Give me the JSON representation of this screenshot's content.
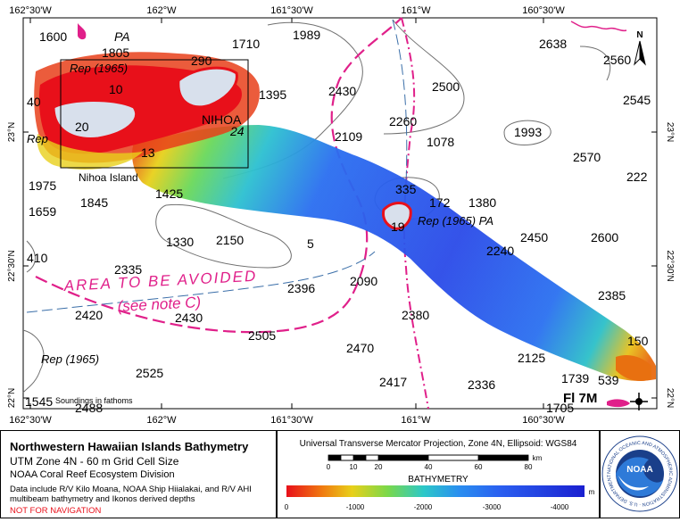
{
  "map": {
    "top_lon_labels": [
      "162°30'W",
      "162°W",
      "161°30'W",
      "161°W",
      "160°30'W"
    ],
    "bottom_lon_labels": [
      "162°30'W",
      "162°W",
      "161°30'W",
      "161°W",
      "160°30'W"
    ],
    "lat_labels": [
      "23°N",
      "22°30'N",
      "22°N"
    ],
    "island_label": "Nihoa Island",
    "avoid_label": "AREA TO BE AVOIDED",
    "avoid_note": "(see note C)",
    "soundings_note": "Soundings in fathoms",
    "north_label": "N",
    "light_label": "Fl 7M",
    "depth_labels": [
      {
        "t": "1600"
      },
      {
        "t": "PA"
      },
      {
        "t": "1805"
      },
      {
        "t": "1710"
      },
      {
        "t": "1989"
      },
      {
        "t": "2638"
      },
      {
        "t": "2560"
      },
      {
        "t": "Rep (1965)"
      },
      {
        "t": "1395"
      },
      {
        "t": "2430"
      },
      {
        "t": "2500"
      },
      {
        "t": "2545"
      },
      {
        "t": "NIHOA"
      },
      {
        "t": "2260"
      },
      {
        "t": "1993"
      },
      {
        "t": "2109"
      },
      {
        "t": "1078"
      },
      {
        "t": "2570"
      },
      {
        "t": "1975"
      },
      {
        "t": "1845"
      },
      {
        "t": "1425"
      },
      {
        "t": "335"
      },
      {
        "t": "172"
      },
      {
        "t": "1380"
      },
      {
        "t": "222"
      },
      {
        "t": "1659"
      },
      {
        "t": "Rep (1965) PA"
      },
      {
        "t": "2240"
      },
      {
        "t": "2450"
      },
      {
        "t": "2600"
      },
      {
        "t": "410"
      },
      {
        "t": "1330"
      },
      {
        "t": "2150"
      },
      {
        "t": "2335"
      },
      {
        "t": "2396"
      },
      {
        "t": "2090"
      },
      {
        "t": "2385"
      },
      {
        "t": "2420"
      },
      {
        "t": "2430"
      },
      {
        "t": "2505"
      },
      {
        "t": "2380"
      },
      {
        "t": "Rep (1965)"
      },
      {
        "t": "2470"
      },
      {
        "t": "2125"
      },
      {
        "t": "2525"
      },
      {
        "t": "2417"
      },
      {
        "t": "2336"
      },
      {
        "t": "1739"
      },
      {
        "t": "539"
      },
      {
        "t": "1545"
      },
      {
        "t": "2488"
      },
      {
        "t": "1705"
      },
      {
        "t": "10"
      },
      {
        "t": "20"
      },
      {
        "t": "290"
      },
      {
        "t": "Rep"
      },
      {
        "t": "40"
      },
      {
        "t": "19"
      },
      {
        "t": "150"
      },
      {
        "t": "24"
      },
      {
        "t": "13"
      },
      {
        "t": "5"
      }
    ]
  },
  "title_panel": {
    "title": "Northwestern Hawaiian Islands Bathymetry",
    "subtitle": "UTM Zone 4N - 60 m Grid Cell Size",
    "org": "NOAA Coral Reef Ecosystem Division",
    "data_line1": "Data include R/V Kilo Moana, NOAA Ship Hiialakai, and R/V AHI",
    "data_line2": "multibeam bathymetry and Ikonos derived depths",
    "warning": "NOT FOR NAVIGATION"
  },
  "scale_panel": {
    "projection": "Universal Transverse Mercator Projection, Zone 4N, Ellipsoid: WGS84",
    "km_ticks": [
      "0",
      "10",
      "20",
      "40",
      "60",
      "80"
    ],
    "km_unit": "km",
    "legend_title": "BATHYMETRY",
    "depth_ticks": [
      "0",
      "-1000",
      "-2000",
      "-3000",
      "-4000"
    ],
    "depth_unit": "m"
  },
  "logo": {
    "center_text": "NOAA",
    "ring_text": "NATIONAL OCEANIC AND ATMOSPHERIC ADMINISTRATION · U.S. DEPARTMENT OF COMMERCE"
  },
  "colors": {
    "avoid_magenta": "#e0208a",
    "contour_gray": "#707070",
    "shallow_red": "#e8101a",
    "deep_blue": "#1a1fd0"
  }
}
